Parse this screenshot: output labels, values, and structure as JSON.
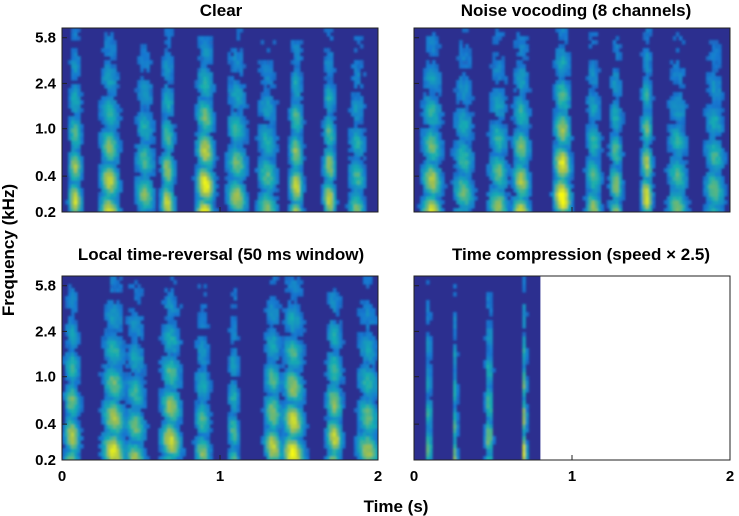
{
  "chart_data": [
    {
      "type": "heatmap",
      "title": "Clear",
      "xlim": [
        0,
        2
      ],
      "ylim": [
        0.2,
        7.0
      ],
      "y_scale": "log",
      "y_ticks": [
        0.2,
        0.4,
        1.0,
        2.4,
        5.8
      ],
      "x_ticks": [
        0,
        1,
        2
      ],
      "x_tick_labels": [],
      "y_tick_labels": [
        "0.2",
        "0.4",
        "1.0",
        "2.4",
        "5.8"
      ],
      "signal_extent": [
        0,
        2
      ],
      "colormap": "parula",
      "background_color": "#2c2f8f"
    },
    {
      "type": "heatmap",
      "title": "Noise vocoding (8 channels)",
      "xlim": [
        0,
        2
      ],
      "ylim": [
        0.2,
        7.0
      ],
      "y_scale": "log",
      "y_ticks": [
        0.2,
        0.4,
        1.0,
        2.4,
        5.8
      ],
      "x_ticks": [
        0,
        1,
        2
      ],
      "x_tick_labels": [],
      "y_tick_labels": [],
      "signal_extent": [
        0,
        2
      ],
      "colormap": "parula",
      "background_color": "#2c2f8f"
    },
    {
      "type": "heatmap",
      "title": "Local time-reversal (50 ms window)",
      "xlim": [
        0,
        2
      ],
      "ylim": [
        0.2,
        7.0
      ],
      "y_scale": "log",
      "y_ticks": [
        0.2,
        0.4,
        1.0,
        2.4,
        5.8
      ],
      "x_ticks": [
        0,
        1,
        2
      ],
      "x_tick_labels": [
        "0",
        "1",
        "2"
      ],
      "y_tick_labels": [
        "0.2",
        "0.4",
        "1.0",
        "2.4",
        "5.8"
      ],
      "signal_extent": [
        0,
        2
      ],
      "colormap": "parula",
      "background_color": "#2c2f8f"
    },
    {
      "type": "heatmap",
      "title": "Time compression (speed × 2.5)",
      "xlim": [
        0,
        2
      ],
      "ylim": [
        0.2,
        7.0
      ],
      "y_scale": "log",
      "y_ticks": [
        0.2,
        0.4,
        1.0,
        2.4,
        5.8
      ],
      "x_ticks": [
        0,
        1,
        2
      ],
      "x_tick_labels": [
        "0",
        "1",
        "2"
      ],
      "y_tick_labels": [],
      "signal_extent": [
        0,
        0.8
      ],
      "colormap": "parula",
      "background_color": "#2c2f8f"
    }
  ],
  "shared_xlabel": "Time (s)",
  "shared_ylabel": "Frequency (kHz)"
}
